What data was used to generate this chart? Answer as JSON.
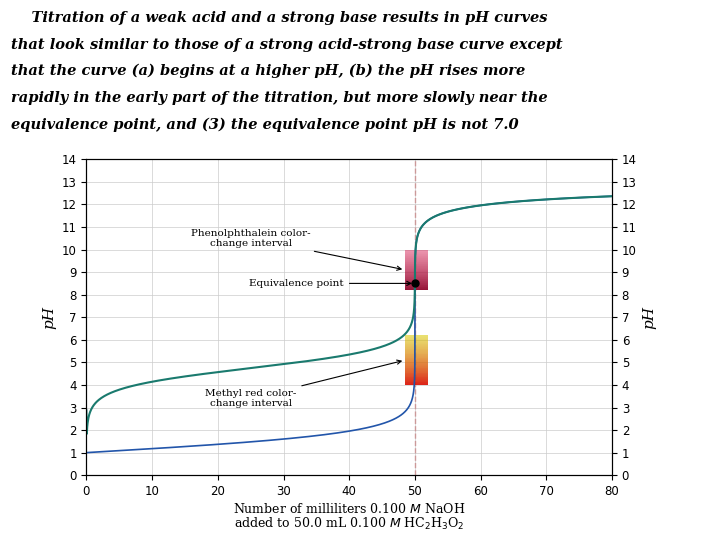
{
  "text_box_bg": "#ffb6c1",
  "plot_bg": "#ffffff",
  "xlim": [
    0,
    80
  ],
  "ylim": [
    0,
    14
  ],
  "xticks": [
    0,
    10,
    20,
    30,
    40,
    50,
    60,
    70,
    80
  ],
  "yticks": [
    0,
    1,
    2,
    3,
    4,
    5,
    6,
    7,
    8,
    9,
    10,
    11,
    12,
    13,
    14
  ],
  "curve_color_weak_acid": "#1a7a6e",
  "curve_color_strong_acid": "#2255aa",
  "equivalence_x": 50.0,
  "equivalence_y": 8.5,
  "dashed_line_color": "#cc9999",
  "phenolphthalein_lo": 8.2,
  "phenolphthalein_hi": 10.0,
  "methyl_red_lo": 4.0,
  "methyl_red_hi": 6.2,
  "band_x_lo": 48.5,
  "band_x_hi": 52.0,
  "label_phenolphthalein": "Phenolphthalein color-\nchange interval",
  "label_methyl_red": "Methyl red color-\nchange interval",
  "label_equivalence": "Equivalence point",
  "ylabel_left": "pH",
  "ylabel_right": "pH",
  "figsize": [
    7.2,
    5.4
  ],
  "dpi": 100,
  "text_line1": "    Titration of a weak acid and a strong base results in pH curves",
  "text_line2": "that look similar to those of a strong acid-strong base curve except",
  "text_line3": "that the curve (a) begins at a higher pH, (b) the pH rises more",
  "text_line4": "rapidly in the early part of the titration, but more slowly near the",
  "text_line5": "equivalence point, and (3) the equivalence point pH is not 7.0"
}
